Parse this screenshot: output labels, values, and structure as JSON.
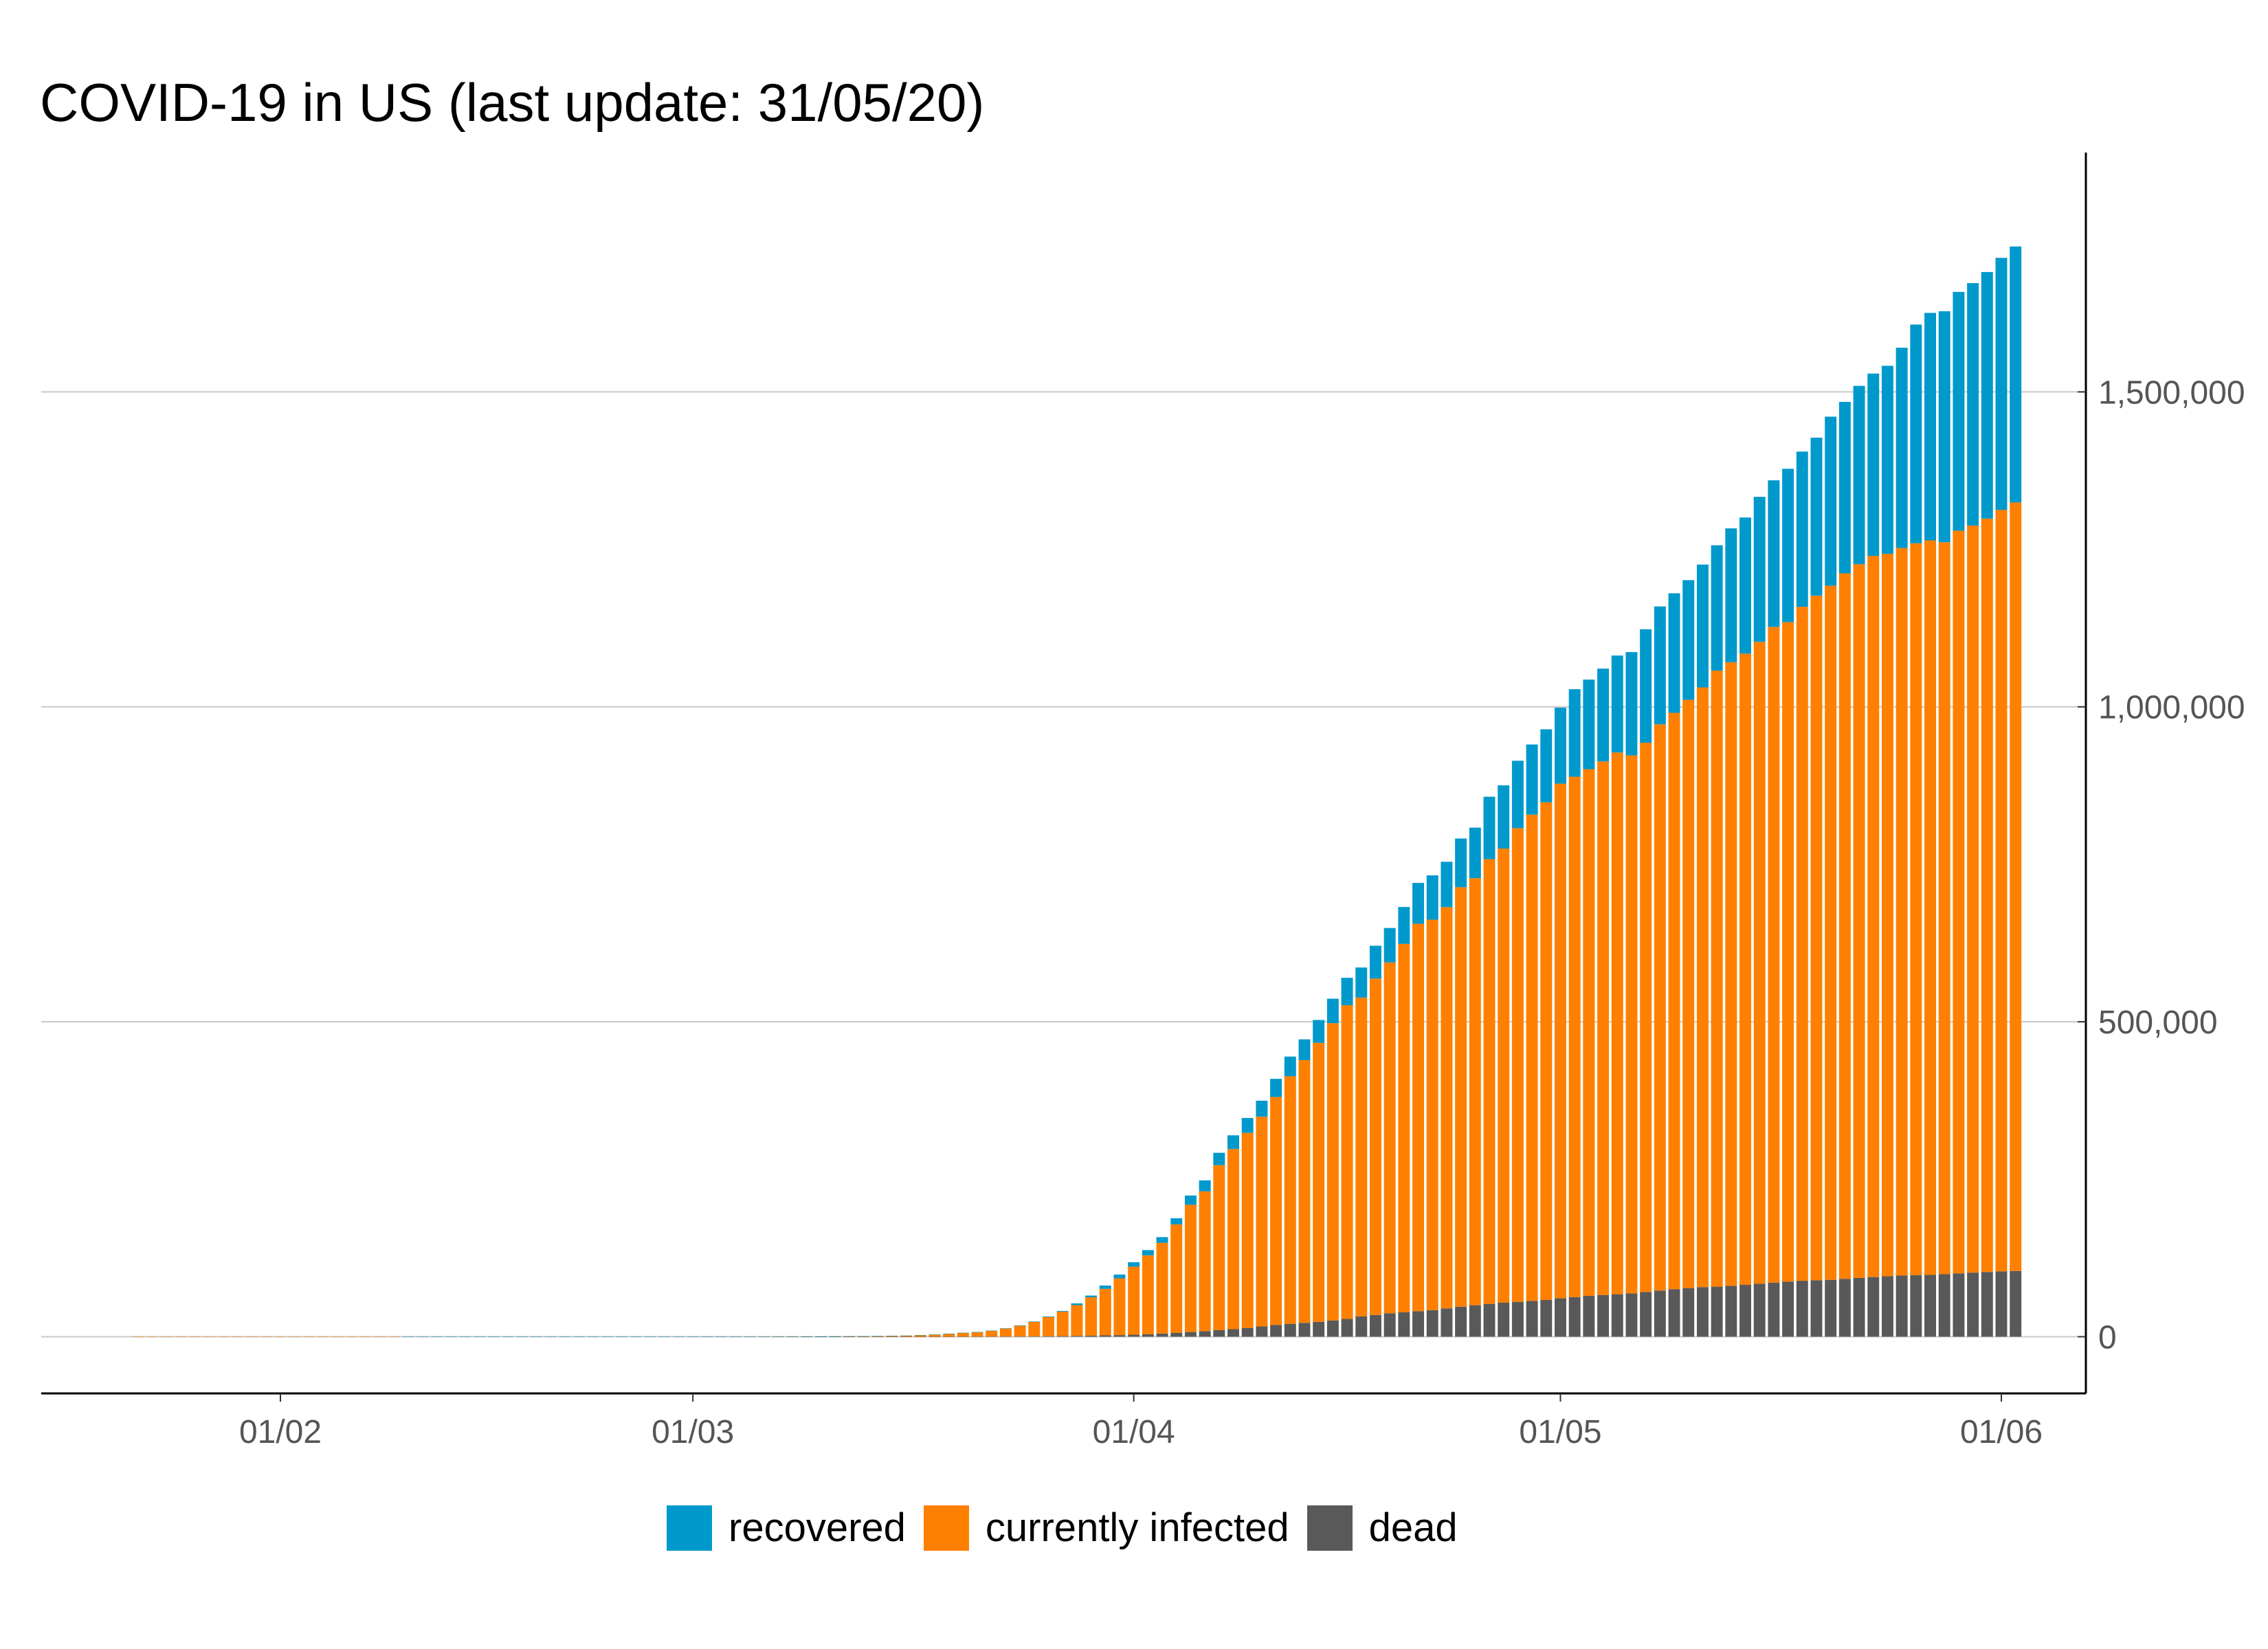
{
  "chart_data": {
    "type": "bar",
    "stacked": true,
    "title": "COVID-19 in US (last update: 31/05/20)",
    "xlabel": "",
    "ylabel": "",
    "x_start": "2020-01-22",
    "x_end": "2020-05-31",
    "x_ticks": [
      {
        "date": "2020-02-01",
        "label": "01/02"
      },
      {
        "date": "2020-03-01",
        "label": "01/03"
      },
      {
        "date": "2020-04-01",
        "label": "01/04"
      },
      {
        "date": "2020-05-01",
        "label": "01/05"
      },
      {
        "date": "2020-06-01",
        "label": "01/06"
      }
    ],
    "y_ticks": [
      {
        "value": 0,
        "label": "0"
      },
      {
        "value": 500000,
        "label": "500,000"
      },
      {
        "value": 1000000,
        "label": "1,000,000"
      },
      {
        "value": 1500000,
        "label": "1,500,000"
      }
    ],
    "ylim": [
      -90000,
      1880000
    ],
    "y_axis_position": "right",
    "grid": "horizontal",
    "legend_position": "bottom",
    "series": [
      {
        "name": "dead",
        "color": "#595959",
        "values": [
          0,
          0,
          0,
          0,
          0,
          0,
          0,
          0,
          0,
          0,
          0,
          0,
          0,
          0,
          0,
          0,
          0,
          0,
          0,
          0,
          0,
          0,
          0,
          0,
          0,
          0,
          0,
          0,
          0,
          0,
          0,
          0,
          0,
          0,
          0,
          0,
          0,
          0,
          0,
          0,
          1,
          1,
          2,
          6,
          9,
          11,
          12,
          15,
          19,
          22,
          26,
          30,
          36,
          40,
          47,
          54,
          69,
          97,
          132,
          200,
          260,
          340,
          470,
          600,
          800,
          1000,
          1300,
          1700,
          2200,
          2600,
          3200,
          4100,
          5100,
          6300,
          7500,
          8800,
          10400,
          12000,
          13700,
          16300,
          18600,
          20500,
          22100,
          23600,
          25800,
          28300,
          32400,
          34600,
          37200,
          38700,
          40600,
          42100,
          45000,
          47600,
          50000,
          52200,
          54000,
          55400,
          56800,
          58400,
          61000,
          63000,
          65000,
          66300,
          67500,
          68900,
          71000,
          73200,
          75500,
          77200,
          78800,
          79500,
          80800,
          82400,
          84100,
          85900,
          87500,
          88800,
          89600,
          90300,
          91900,
          93400,
          94700,
          96000,
          97100,
          97700,
          98200,
          99300,
          100600,
          101800,
          102800,
          103800,
          104400
        ]
      },
      {
        "name": "currently infected",
        "color": "#ff8000",
        "values": [
          1,
          1,
          2,
          2,
          5,
          5,
          5,
          5,
          5,
          5,
          6,
          7,
          8,
          11,
          11,
          11,
          12,
          12,
          12,
          12,
          12,
          13,
          13,
          14,
          14,
          14,
          14,
          14,
          14,
          14,
          14,
          14,
          14,
          14,
          14,
          14,
          14,
          14,
          14,
          30,
          60,
          60,
          70,
          90,
          130,
          190,
          290,
          390,
          510,
          590,
          780,
          950,
          1120,
          1450,
          1770,
          2580,
          3370,
          4600,
          5990,
          7140,
          9250,
          12740,
          17230,
          22900,
          30560,
          38950,
          48930,
          61000,
          73800,
          90000,
          108000,
          125000,
          144000,
          172000,
          202000,
          222000,
          262000,
          286000,
          310000,
          333000,
          362000,
          393000,
          417000,
          443000,
          472000,
          498000,
          506000,
          534000,
          557000,
          585000,
          615000,
          620000,
          637000,
          666000,
          678000,
          706000,
          721000,
          752000,
          772000,
          790000,
          817000,
          826000,
          836000,
          847000,
          860000,
          854000,
          872000,
          899000,
          915000,
          934000,
          952000,
          978000,
          990000,
          1002000,
          1019000,
          1041000,
          1047000,
          1070000,
          1087000,
          1102000,
          1120000,
          1133000,
          1145000,
          1147000,
          1155000,
          1162000,
          1166000,
          1162000,
          1179000,
          1186000,
          1196000,
          1209000,
          1220000,
          1225000,
          1230000
        ]
      },
      {
        "name": "recovered",
        "color": "#0099cc",
        "values": [
          0,
          0,
          0,
          0,
          0,
          0,
          0,
          0,
          0,
          0,
          0,
          0,
          0,
          0,
          0,
          0,
          0,
          0,
          0,
          3,
          3,
          3,
          3,
          3,
          3,
          3,
          3,
          3,
          3,
          3,
          3,
          3,
          3,
          3,
          3,
          3,
          3,
          3,
          3,
          7,
          7,
          7,
          7,
          7,
          7,
          7,
          7,
          7,
          8,
          8,
          8,
          12,
          12,
          12,
          17,
          17,
          106,
          108,
          147,
          176,
          178,
          348,
          361,
          681,
          869,
          1072,
          2665,
          2665,
          5220,
          6058,
          7024,
          8474,
          9001,
          9707,
          14652,
          17448,
          19581,
          21763,
          23559,
          25410,
          28790,
          31270,
          32988,
          36254,
          38820,
          43482,
          47763,
          52096,
          54703,
          58545,
          64840,
          70337,
          72015,
          77366,
          80203,
          99079,
          100372,
          106988,
          111424,
          115936,
          120720,
          138990,
          142238,
          147411,
          153947,
          164015,
          180152,
          187180,
          189791,
          189910,
          195036,
          198993,
          212534,
          216169,
          230287,
          232733,
          243430,
          246414,
          250747,
          268376,
          272265,
          283178,
          289392,
          298418,
          318027,
          347225,
          361239,
          366736,
          379157,
          384902,
          391508,
          399991,
          406446,
          416461,
          444758
        ]
      }
    ]
  },
  "legend": {
    "items": [
      {
        "label": "recovered",
        "color": "#0099cc"
      },
      {
        "label": "currently infected",
        "color": "#ff8000"
      },
      {
        "label": "dead",
        "color": "#595959"
      }
    ]
  }
}
